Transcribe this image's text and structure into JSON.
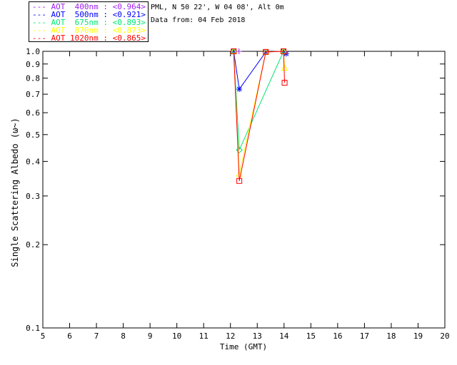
{
  "header": {
    "location_line": "PML, N 50 22', W 04 08', Alt 0m",
    "date_line": "Data from: 04 Feb 2018"
  },
  "chart_data": {
    "type": "line",
    "title": "",
    "xlabel": "Time (GMT)",
    "ylabel": "Single Scattering Albedo (ω~)",
    "xlim": [
      5,
      20
    ],
    "ylim": [
      0.1,
      1.0
    ],
    "yscale": "log",
    "grid": false,
    "legend_position": "top-left-outside",
    "frame_color": "#000000",
    "xticks": [
      5,
      6,
      7,
      8,
      9,
      10,
      11,
      12,
      13,
      14,
      15,
      16,
      17,
      18,
      19,
      20
    ],
    "yticks": [
      1.0,
      0.9,
      0.8,
      0.7,
      0.6,
      0.5,
      0.4,
      0.3,
      0.2,
      0.1
    ],
    "series": [
      {
        "name": "AOT 400nm",
        "mean_label": "<0.964>",
        "legend_label": "--- AOT  400nm : <0.964>",
        "color": "#a020f0",
        "marker": "plus",
        "points": [
          [
            12.12,
            1.0
          ],
          [
            12.32,
            1.0
          ]
        ]
      },
      {
        "name": "AOT 500nm",
        "mean_label": "<0.921>",
        "legend_label": "--- AOT  500nm : <0.921>",
        "color": "#0000ff",
        "marker": "asterisk",
        "points": [
          [
            12.12,
            1.0
          ],
          [
            12.33,
            0.73
          ],
          [
            13.32,
            0.995
          ],
          [
            13.98,
            1.0
          ],
          [
            14.08,
            0.98
          ]
        ]
      },
      {
        "name": "AOT 675nm",
        "mean_label": "<0.893>",
        "legend_label": "--- AOT  675nm : <0.893>",
        "color": "#00e673",
        "marker": "diamond",
        "points": [
          [
            12.12,
            1.0
          ],
          [
            12.33,
            0.44
          ],
          [
            13.98,
            1.0
          ]
        ]
      },
      {
        "name": "AOT 870nm",
        "mean_label": "<0.873>",
        "legend_label": "--- AOT  870nm : <0.873>",
        "color": "#ffff00",
        "marker": "triangle",
        "points": [
          [
            12.12,
            1.0
          ],
          [
            12.33,
            0.36
          ],
          [
            13.32,
            0.995
          ],
          [
            13.98,
            1.0
          ],
          [
            14.02,
            0.87
          ]
        ]
      },
      {
        "name": "AOT 1020nm",
        "mean_label": "<0.865>",
        "legend_label": "--- AOT 1020nm : <0.865>",
        "color": "#ff0000",
        "marker": "square",
        "points": [
          [
            12.12,
            1.0
          ],
          [
            12.33,
            0.34
          ],
          [
            13.32,
            0.995
          ],
          [
            13.98,
            1.0
          ],
          [
            14.02,
            0.77
          ]
        ]
      }
    ]
  }
}
